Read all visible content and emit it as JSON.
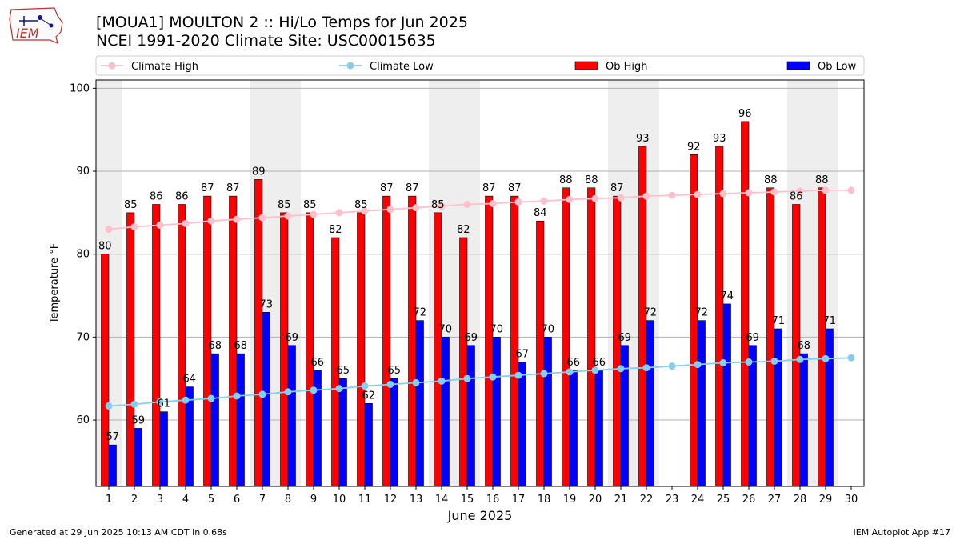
{
  "header": {
    "logo_text": "IEM",
    "title_line1": "[MOUA1] MOULTON 2 :: Hi/Lo Temps for Jun 2025",
    "title_line2": "NCEI 1991-2020 Climate Site: USC00015635"
  },
  "footer": {
    "generated": "Generated at 29 Jun 2025 10:13 AM CDT in 0.68s",
    "app": "IEM Autoplot App #17"
  },
  "colors": {
    "climate_high": "#ffc0cb",
    "climate_low": "#87ceeb",
    "ob_high": "#ff0000",
    "ob_low": "#0000ff",
    "weekend_shade": "#eeeeee",
    "grid": "#b0b0b0"
  },
  "chart_data": {
    "type": "bar",
    "xlabel": "June 2025",
    "ylabel": "Temperature °F",
    "ylim": [
      52,
      101
    ],
    "yticks": [
      60,
      70,
      80,
      90,
      100
    ],
    "grid": "horizontal",
    "legend_position": "top",
    "categories": [
      1,
      2,
      3,
      4,
      5,
      6,
      7,
      8,
      9,
      10,
      11,
      12,
      13,
      14,
      15,
      16,
      17,
      18,
      19,
      20,
      21,
      22,
      23,
      24,
      25,
      26,
      27,
      28,
      29,
      30
    ],
    "weekend_days": [
      1,
      7,
      8,
      14,
      15,
      21,
      22,
      28,
      29
    ],
    "series": [
      {
        "name": "Ob High",
        "kind": "bar",
        "values": [
          80,
          85,
          86,
          86,
          87,
          87,
          89,
          85,
          85,
          82,
          85,
          87,
          87,
          85,
          82,
          87,
          87,
          84,
          88,
          88,
          87,
          93,
          null,
          92,
          93,
          96,
          88,
          86,
          88,
          null
        ]
      },
      {
        "name": "Ob Low",
        "kind": "bar",
        "values": [
          57,
          59,
          61,
          64,
          68,
          68,
          73,
          69,
          66,
          65,
          62,
          65,
          72,
          70,
          69,
          70,
          67,
          70,
          66,
          66,
          69,
          72,
          null,
          72,
          74,
          69,
          71,
          68,
          71,
          null
        ]
      },
      {
        "name": "Climate High",
        "kind": "line",
        "values": [
          83.0,
          83.3,
          83.5,
          83.7,
          84.0,
          84.2,
          84.4,
          84.6,
          84.8,
          85.0,
          85.2,
          85.4,
          85.6,
          85.8,
          86.0,
          86.1,
          86.3,
          86.4,
          86.6,
          86.7,
          86.8,
          87.0,
          87.1,
          87.2,
          87.3,
          87.4,
          87.5,
          87.6,
          87.7,
          87.7
        ]
      },
      {
        "name": "Climate Low",
        "kind": "line",
        "values": [
          61.7,
          61.9,
          62.2,
          62.4,
          62.6,
          62.9,
          63.1,
          63.4,
          63.6,
          63.8,
          64.1,
          64.3,
          64.5,
          64.7,
          65.0,
          65.2,
          65.4,
          65.6,
          65.8,
          66.0,
          66.2,
          66.3,
          66.5,
          66.7,
          66.9,
          67.0,
          67.1,
          67.3,
          67.4,
          67.5
        ]
      }
    ]
  }
}
